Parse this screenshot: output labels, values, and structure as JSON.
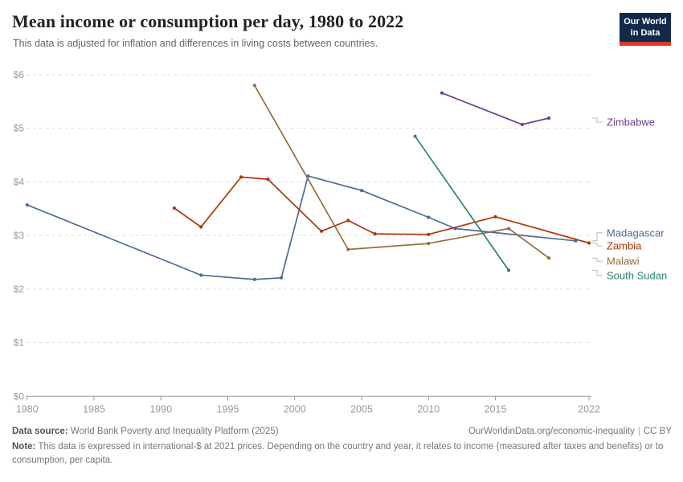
{
  "header": {
    "title": "Mean income or consumption per day, 1980 to 2022",
    "subtitle": "This data is adjusted for inflation and differences in living costs between countries.",
    "logo": {
      "line1": "Our World",
      "line2": "in Data",
      "bg_color": "#12294B",
      "stripe_color": "#D93A2B"
    }
  },
  "chart_data": {
    "type": "line",
    "title": "Mean income or consumption per day, 1980 to 2022",
    "xlabel": "",
    "ylabel": "",
    "xlim": [
      1979,
      2023
    ],
    "ylim": [
      0,
      6
    ],
    "grid": true,
    "legend_position": "right-edge-entity-labels",
    "x_ticks": [
      1980,
      1985,
      1990,
      1995,
      2000,
      2005,
      2010,
      2015,
      2022
    ],
    "y_ticks": [
      0,
      1,
      2,
      3,
      4,
      5,
      6
    ],
    "y_tick_prefix": "$",
    "axis_color": "#999999",
    "gridline_color": "#dddddd",
    "series": [
      {
        "name": "Madagascar",
        "color": "#4C6A9C",
        "points": [
          [
            1980,
            3.57
          ],
          [
            1993,
            2.26
          ],
          [
            1997,
            2.18
          ],
          [
            1999,
            2.21
          ],
          [
            2001,
            4.11
          ],
          [
            2005,
            3.84
          ],
          [
            2010,
            3.34
          ],
          [
            2012,
            3.13
          ],
          [
            2021,
            2.9
          ]
        ]
      },
      {
        "name": "Zambia",
        "color": "#B13507",
        "points": [
          [
            1991,
            3.51
          ],
          [
            1993,
            3.16
          ],
          [
            1996,
            4.09
          ],
          [
            1998,
            4.05
          ],
          [
            2002,
            3.08
          ],
          [
            2004,
            3.28
          ],
          [
            2006,
            3.03
          ],
          [
            2010,
            3.02
          ],
          [
            2015,
            3.35
          ],
          [
            2022,
            2.86
          ]
        ]
      },
      {
        "name": "Malawi",
        "color": "#996D39",
        "points": [
          [
            1997,
            5.8
          ],
          [
            2004,
            2.74
          ],
          [
            2010,
            2.85
          ],
          [
            2016,
            3.13
          ],
          [
            2019,
            2.58
          ]
        ]
      },
      {
        "name": "South Sudan",
        "color": "#2C8465",
        "points": [
          [
            2009,
            4.85
          ],
          [
            2016,
            2.35
          ]
        ]
      },
      {
        "name": "Zimbabwe",
        "color": "#6D3E91",
        "points": [
          [
            2011,
            5.66
          ],
          [
            2017,
            5.07
          ],
          [
            2019,
            5.19
          ]
        ]
      }
    ]
  },
  "footer": {
    "source_label": "Data source:",
    "source_text": "World Bank Poverty and Inequality Platform (2025)",
    "url_text": "OurWorldinData.org/economic-inequality",
    "divider": "|",
    "license": "CC BY",
    "note_label": "Note:",
    "note_text": "This data is expressed in international-$ at 2021 prices. Depending on the country and year, it relates to income (measured after taxes and benefits) or to consumption, per capita."
  }
}
